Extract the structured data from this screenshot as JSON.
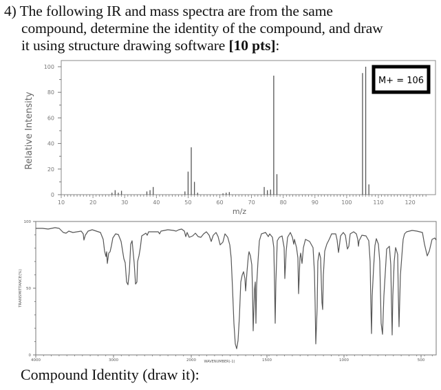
{
  "question": {
    "number": "4)",
    "line1": "The following IR and mass spectra are from the same",
    "line2": "compound, determine the identity of the compound, and draw",
    "line3_prefix": "it using structure drawing software ",
    "line3_bold": "[10 pts]",
    "line3_suffix": ":"
  },
  "answer_prompt": "Compound Identity (draw it):",
  "chart_data": [
    {
      "type": "bar",
      "title": "Mass spectrum",
      "xlabel": "m/z",
      "ylabel": "Relative Intensity",
      "xlim": [
        10,
        125
      ],
      "ylim": [
        0,
        100
      ],
      "x_ticks": [
        10,
        20,
        30,
        40,
        50,
        60,
        70,
        80,
        90,
        100,
        110,
        120
      ],
      "y_ticks": [
        0,
        20,
        40,
        60,
        80,
        100
      ],
      "annotation": "M+ = 106",
      "peaks": [
        {
          "mz": 26,
          "intensity": 1.5
        },
        {
          "mz": 27,
          "intensity": 3.5
        },
        {
          "mz": 28,
          "intensity": 1.5
        },
        {
          "mz": 29,
          "intensity": 3
        },
        {
          "mz": 37,
          "intensity": 2.5
        },
        {
          "mz": 38,
          "intensity": 3.5
        },
        {
          "mz": 39,
          "intensity": 6
        },
        {
          "mz": 49,
          "intensity": 2.5
        },
        {
          "mz": 50,
          "intensity": 18
        },
        {
          "mz": 51,
          "intensity": 37
        },
        {
          "mz": 52,
          "intensity": 10
        },
        {
          "mz": 53,
          "intensity": 1.5
        },
        {
          "mz": 61,
          "intensity": 1
        },
        {
          "mz": 62,
          "intensity": 1.5
        },
        {
          "mz": 63,
          "intensity": 2
        },
        {
          "mz": 74,
          "intensity": 6
        },
        {
          "mz": 75,
          "intensity": 3.5
        },
        {
          "mz": 76,
          "intensity": 4
        },
        {
          "mz": 77,
          "intensity": 93
        },
        {
          "mz": 78,
          "intensity": 16
        },
        {
          "mz": 105,
          "intensity": 95
        },
        {
          "mz": 106,
          "intensity": 100
        },
        {
          "mz": 107,
          "intensity": 8
        }
      ]
    },
    {
      "type": "line",
      "title": "IR spectrum",
      "xlabel": "WAVENUMBER(-1)",
      "ylabel": "TRANSMITTANCE(%)",
      "xlim": [
        4000,
        400
      ],
      "ylim": [
        0,
        100
      ],
      "x_ticks": [
        4000,
        3000,
        2000,
        1500,
        1000,
        500
      ],
      "y_ticks": [
        0,
        50,
        100
      ],
      "notable_bands": [
        {
          "wavenumber": 3070,
          "transmittance": 70
        },
        {
          "wavenumber": 2820,
          "transmittance": 53
        },
        {
          "wavenumber": 2735,
          "transmittance": 52
        },
        {
          "wavenumber": 1700,
          "transmittance": 5
        },
        {
          "wavenumber": 1600,
          "transmittance": 68
        },
        {
          "wavenumber": 1585,
          "transmittance": 20
        },
        {
          "wavenumber": 1455,
          "transmittance": 28
        },
        {
          "wavenumber": 1390,
          "transmittance": 55
        },
        {
          "wavenumber": 1310,
          "transmittance": 24
        },
        {
          "wavenumber": 1205,
          "transmittance": 10
        },
        {
          "wavenumber": 1165,
          "transmittance": 38
        },
        {
          "wavenumber": 1070,
          "transmittance": 70
        },
        {
          "wavenumber": 1020,
          "transmittance": 72
        },
        {
          "wavenumber": 830,
          "transmittance": 15
        },
        {
          "wavenumber": 750,
          "transmittance": 12
        },
        {
          "wavenumber": 690,
          "transmittance": 14
        },
        {
          "wavenumber": 650,
          "transmittance": 18
        },
        {
          "wavenumber": 450,
          "transmittance": 78
        }
      ]
    }
  ],
  "ms": {
    "ylabel": "Relative Intensity",
    "xlabel": "m/z",
    "annotation": "M+ = 106",
    "y_tick_labels": [
      "100",
      "80",
      "60",
      "40",
      "20",
      "0"
    ],
    "x_tick_labels": [
      "10",
      "20",
      "30",
      "40",
      "50",
      "60",
      "70",
      "80",
      "90",
      "100",
      "110",
      "120"
    ]
  },
  "ir": {
    "ylabel": "TRANSMITTANCE(%)",
    "xlabel": "WAVENUMBER(-1)",
    "y_tick_labels": [
      "100",
      "50",
      "0"
    ],
    "x_tick_labels": [
      "4000",
      "3000",
      "2000",
      "1500",
      "1000",
      "500"
    ]
  }
}
